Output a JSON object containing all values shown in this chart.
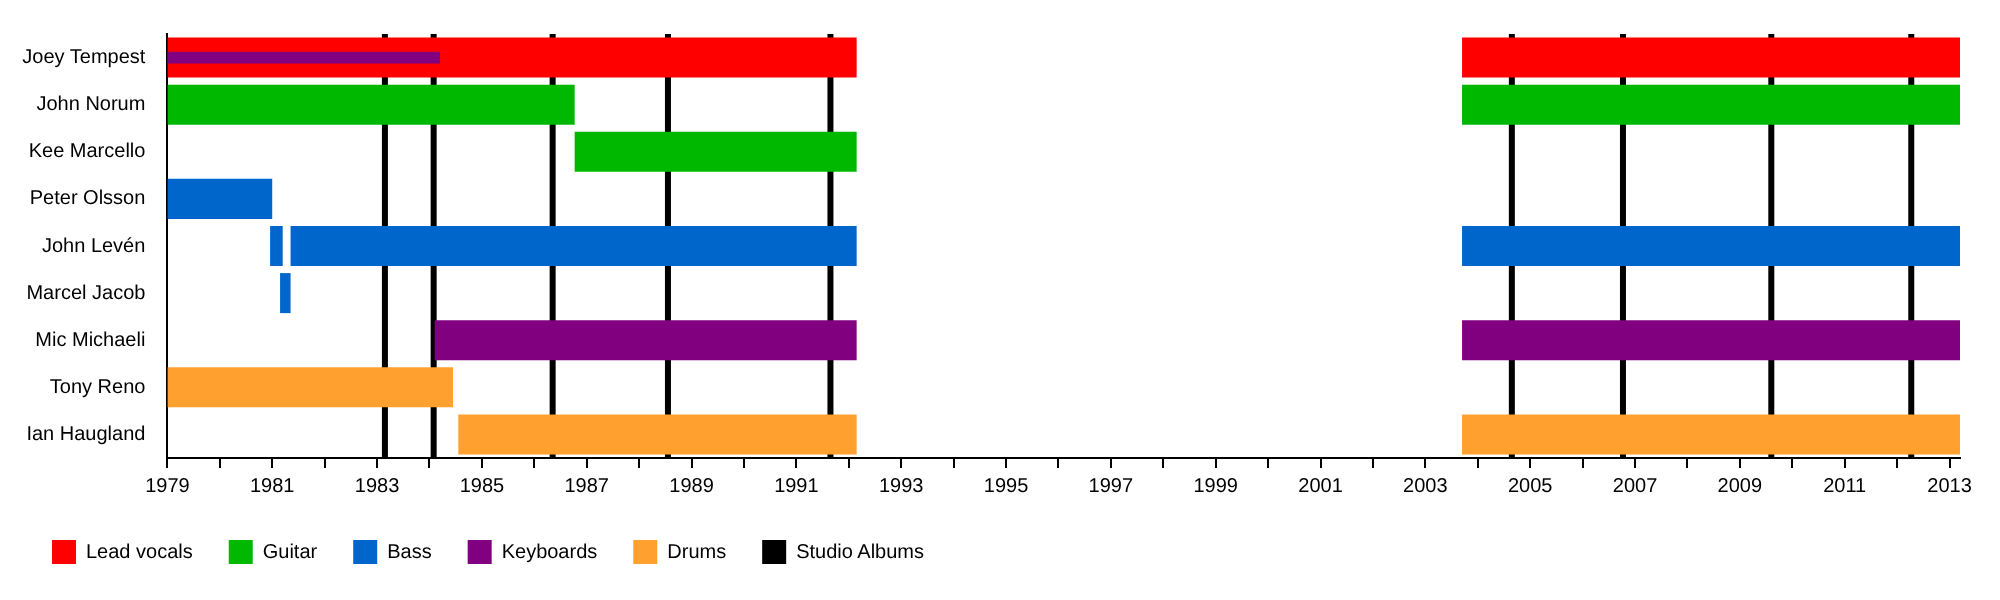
{
  "chart_data": {
    "type": "bar",
    "orientation": "horizontal",
    "categories": [
      "Joey Tempest",
      "John Norum",
      "Kee Marcello",
      "Peter Olsson",
      "John Levén",
      "Marcel Jacob",
      "Mic Michaeli",
      "Tony Reno",
      "Ian Haugland"
    ],
    "series": [
      {
        "name": "Lead vocals",
        "color": "#ff0000",
        "base": [
          1979,
          null,
          null,
          null,
          null,
          null,
          null,
          null,
          null
        ],
        "values": [
          13.15,
          null,
          null,
          null,
          null,
          null,
          null,
          null,
          null
        ]
      },
      {
        "color": "#800080",
        "base": [
          1979,
          null,
          null,
          null,
          null,
          null,
          null,
          null,
          null
        ],
        "values": [
          5.2,
          null,
          null,
          null,
          null,
          null,
          null,
          null,
          null
        ]
      },
      {
        "name": "Guitar",
        "color": "#00b800",
        "base": [
          null,
          1979,
          1986.77,
          null,
          null,
          null,
          null,
          null,
          null
        ],
        "values": [
          null,
          7.77,
          5.38,
          null,
          null,
          null,
          null,
          null,
          null
        ]
      },
      {
        "name": "Bass",
        "color": "#0066cc",
        "base": [
          null,
          null,
          null,
          1979,
          1981.35,
          1981.15,
          null,
          null,
          null
        ],
        "values": [
          null,
          null,
          null,
          2.0,
          10.8,
          0.2,
          null,
          null,
          null
        ]
      },
      {
        "color": "#0066cc",
        "base": [
          null,
          null,
          null,
          null,
          1980.96,
          null,
          null,
          null,
          null
        ],
        "values": [
          null,
          null,
          null,
          null,
          0.24,
          null,
          null,
          null,
          null
        ]
      },
      {
        "name": "Keyboards",
        "color": "#800080",
        "base": [
          null,
          null,
          null,
          null,
          null,
          null,
          1984.1,
          null,
          null
        ],
        "values": [
          null,
          null,
          null,
          null,
          null,
          null,
          8.05,
          null,
          null
        ]
      },
      {
        "name": "Drums",
        "color": "#ffa02f",
        "base": [
          null,
          null,
          null,
          null,
          null,
          null,
          null,
          1979,
          1984.55
        ],
        "values": [
          null,
          null,
          null,
          null,
          null,
          null,
          null,
          5.45,
          7.6
        ]
      },
      {
        "color": "#ff0000",
        "base": [
          2003.7,
          null,
          null,
          null,
          null,
          null,
          null,
          null,
          null
        ],
        "values": [
          9.5,
          null,
          null,
          null,
          null,
          null,
          null,
          null,
          null
        ]
      },
      {
        "color": "#00b800",
        "base": [
          null,
          2003.7,
          null,
          null,
          null,
          null,
          null,
          null,
          null
        ],
        "values": [
          null,
          9.5,
          null,
          null,
          null,
          null,
          null,
          null,
          null
        ]
      },
      {
        "color": "#0066cc",
        "base": [
          null,
          null,
          null,
          null,
          2003.7,
          null,
          null,
          null,
          null
        ],
        "values": [
          null,
          null,
          null,
          null,
          9.5,
          null,
          null,
          null,
          null
        ]
      },
      {
        "color": "#800080",
        "base": [
          null,
          null,
          null,
          null,
          null,
          null,
          2003.7,
          null,
          null
        ],
        "values": [
          null,
          null,
          null,
          null,
          null,
          null,
          9.5,
          null,
          null
        ]
      },
      {
        "color": "#ffa02f",
        "base": [
          null,
          null,
          null,
          null,
          null,
          null,
          null,
          null,
          2003.7
        ],
        "values": [
          null,
          null,
          null,
          null,
          null,
          null,
          null,
          null,
          9.5
        ]
      }
    ],
    "xlim": [
      1979,
      2013.2
    ],
    "xticks": [
      1979,
      {
        "value": 1980,
        "label": null
      },
      1981,
      {
        "value": 1982,
        "label": null
      },
      1983,
      {
        "value": 1984,
        "label": null
      },
      1985,
      {
        "value": 1986,
        "label": null
      },
      1987,
      {
        "value": 1988,
        "label": null
      },
      1989,
      {
        "value": 1990,
        "label": null
      },
      1991,
      {
        "value": 1992,
        "label": null
      },
      1993,
      {
        "value": 1994,
        "label": null
      },
      1995,
      {
        "value": 1996,
        "label": null
      },
      1997,
      {
        "value": 1998,
        "label": null
      },
      1999,
      {
        "value": 2000,
        "label": null
      },
      2001,
      {
        "value": 2002,
        "label": null
      },
      2003,
      {
        "value": 2004,
        "label": null
      },
      2005,
      {
        "value": 2006,
        "label": null
      },
      2007,
      {
        "value": 2008,
        "label": null
      },
      2009,
      {
        "value": 2010,
        "label": null
      },
      2011,
      {
        "value": 2012,
        "label": null
      },
      2013
    ],
    "ref_lines": [
      {
        "axis": "x",
        "value": 1983.15,
        "label": "Studio Albums",
        "color": "#000000"
      },
      {
        "axis": "x",
        "value": 1984.08,
        "color": "#000000"
      },
      {
        "axis": "x",
        "value": 1986.35,
        "color": "#000000"
      },
      {
        "axis": "x",
        "value": 1988.55,
        "color": "#000000"
      },
      {
        "axis": "x",
        "value": 1991.65,
        "color": "#000000"
      },
      {
        "axis": "x",
        "value": 2004.65,
        "color": "#000000"
      },
      {
        "axis": "x",
        "value": 2006.77,
        "color": "#000000"
      },
      {
        "axis": "x",
        "value": 2009.6,
        "color": "#000000"
      },
      {
        "axis": "x",
        "value": 2012.27,
        "color": "#000000"
      }
    ],
    "grid": false,
    "legend": "bottom"
  }
}
